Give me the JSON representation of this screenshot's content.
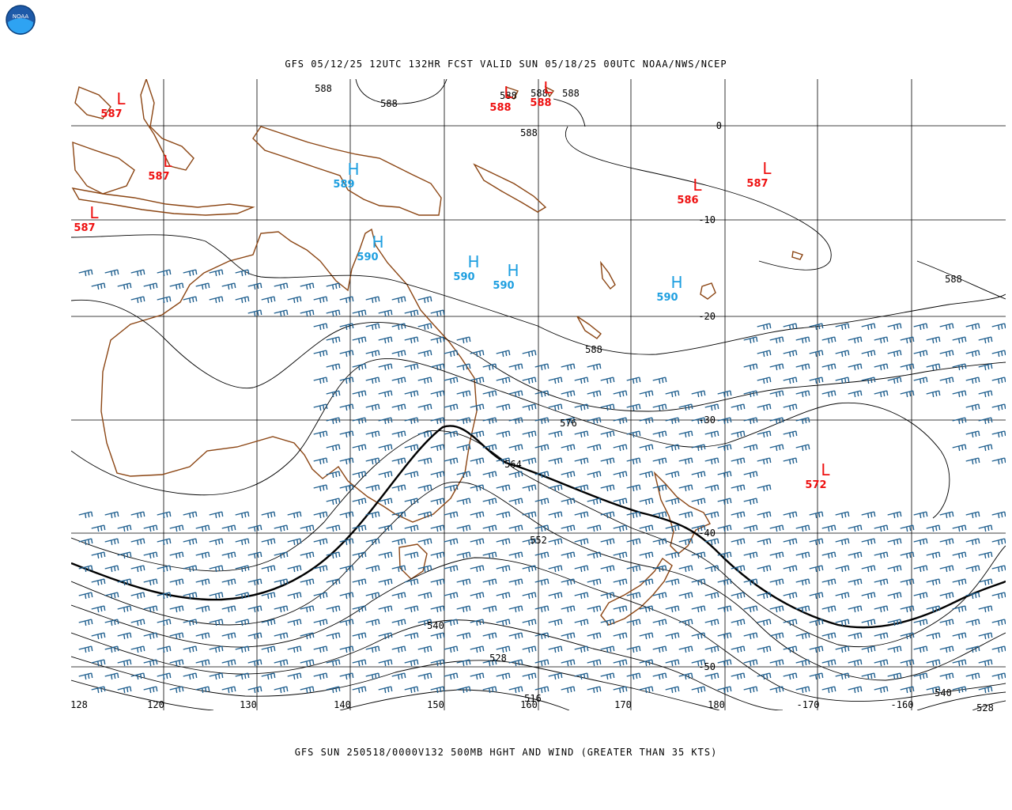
{
  "header": {
    "logo_text": "NOAA",
    "top_title": "GFS 05/12/25 12UTC 132HR FCST VALID SUN 05/18/25 00UTC NOAA/NWS/NCEP",
    "bottom_title": "GFS SUN 250518/0000V132 500MB HGHT AND WIND (GREATER THAN 35 KTS)"
  },
  "colors": {
    "coastline": "#8b4513",
    "contour": "#000000",
    "wind_barb": "#1f5f8f",
    "high": "#1e9fe0",
    "low": "#ee1111",
    "grid": "#000000"
  },
  "lon_labels": [
    "128",
    "120",
    "130",
    "140",
    "150",
    "160",
    "170",
    "180",
    "-170",
    "-160"
  ],
  "lat_labels": [
    "0",
    "-10",
    "-20",
    "-30",
    "-40",
    "-50"
  ],
  "contour_labels": [
    "588",
    "588",
    "588",
    "588",
    "588",
    "588",
    "588",
    "588",
    "576",
    "564",
    "552",
    "540",
    "528",
    "516",
    "540",
    "528"
  ],
  "highs": [
    {
      "symbol": "H",
      "value": "589"
    },
    {
      "symbol": "H",
      "value": "590"
    },
    {
      "symbol": "H",
      "value": "590"
    },
    {
      "symbol": "H",
      "value": "590"
    },
    {
      "symbol": "H",
      "value": "590"
    }
  ],
  "lows": [
    {
      "symbol": "L",
      "value": "587"
    },
    {
      "symbol": "L",
      "value": "587"
    },
    {
      "symbol": "L",
      "value": "587"
    },
    {
      "symbol": "L",
      "value": "588"
    },
    {
      "symbol": "L",
      "value": "588"
    },
    {
      "symbol": "L",
      "value": "586"
    },
    {
      "symbol": "L",
      "value": "587"
    },
    {
      "symbol": "L",
      "value": "572"
    }
  ]
}
